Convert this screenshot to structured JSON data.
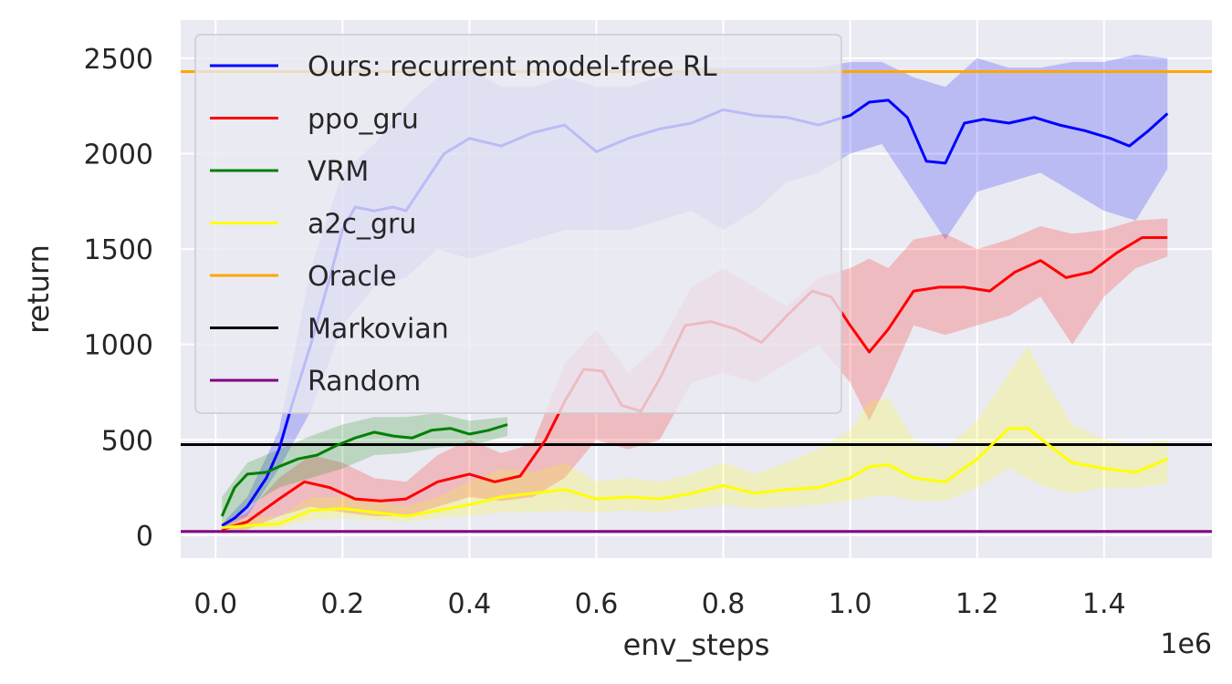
{
  "chart_data": {
    "type": "line",
    "xlabel": "env_steps",
    "ylabel": "return",
    "x_scale_label": "1e6",
    "xlim": [
      -0.055,
      1.57
    ],
    "ylim": [
      -120,
      2700
    ],
    "xticks": [
      0.0,
      0.2,
      0.4,
      0.6,
      0.8,
      1.0,
      1.2,
      1.4
    ],
    "xtick_labels": [
      "0.0",
      "0.2",
      "0.4",
      "0.6",
      "0.8",
      "1.0",
      "1.2",
      "1.4"
    ],
    "yticks": [
      0,
      500,
      1000,
      1500,
      2000,
      2500
    ],
    "ytick_labels": [
      "0",
      "500",
      "1000",
      "1500",
      "2000",
      "2500"
    ],
    "grid": true,
    "legend_position": "top-left",
    "background_color": "#eaeaf2",
    "series": [
      {
        "name": "Ours: recurrent model-free RL",
        "color": "#0000ff",
        "x": [
          0.01,
          0.03,
          0.05,
          0.08,
          0.1,
          0.12,
          0.15,
          0.18,
          0.2,
          0.22,
          0.25,
          0.28,
          0.3,
          0.33,
          0.36,
          0.4,
          0.45,
          0.5,
          0.55,
          0.6,
          0.65,
          0.7,
          0.75,
          0.8,
          0.85,
          0.9,
          0.95,
          1.0,
          1.03,
          1.06,
          1.09,
          1.12,
          1.15,
          1.18,
          1.21,
          1.25,
          1.29,
          1.33,
          1.37,
          1.41,
          1.44,
          1.47,
          1.5
        ],
        "y": [
          50,
          90,
          150,
          300,
          450,
          680,
          1000,
          1350,
          1600,
          1720,
          1700,
          1720,
          1700,
          1850,
          2000,
          2080,
          2040,
          2110,
          2150,
          2010,
          2080,
          2130,
          2160,
          2230,
          2200,
          2190,
          2150,
          2200,
          2270,
          2280,
          2190,
          1960,
          1950,
          2160,
          2180,
          2160,
          2190,
          2150,
          2120,
          2080,
          2040,
          2120,
          2210
        ]
      },
      {
        "name": "ppo_gru",
        "color": "#ff0000",
        "x": [
          0.01,
          0.05,
          0.1,
          0.14,
          0.18,
          0.22,
          0.26,
          0.3,
          0.35,
          0.4,
          0.44,
          0.48,
          0.52,
          0.55,
          0.58,
          0.61,
          0.64,
          0.67,
          0.7,
          0.74,
          0.78,
          0.82,
          0.86,
          0.9,
          0.94,
          0.97,
          1.0,
          1.03,
          1.06,
          1.1,
          1.14,
          1.18,
          1.22,
          1.26,
          1.3,
          1.34,
          1.38,
          1.42,
          1.46,
          1.5
        ],
        "y": [
          30,
          70,
          190,
          280,
          250,
          190,
          180,
          190,
          280,
          320,
          280,
          310,
          500,
          700,
          870,
          860,
          680,
          650,
          820,
          1100,
          1120,
          1080,
          1010,
          1150,
          1280,
          1250,
          1100,
          960,
          1080,
          1280,
          1300,
          1300,
          1280,
          1380,
          1440,
          1350,
          1380,
          1480,
          1560,
          1560
        ]
      },
      {
        "name": "VRM",
        "color": "#008000",
        "x": [
          0.01,
          0.03,
          0.05,
          0.08,
          0.1,
          0.13,
          0.16,
          0.19,
          0.22,
          0.25,
          0.28,
          0.31,
          0.34,
          0.37,
          0.4,
          0.43,
          0.46
        ],
        "y": [
          100,
          250,
          320,
          330,
          360,
          400,
          420,
          470,
          510,
          540,
          520,
          510,
          550,
          560,
          530,
          550,
          580
        ]
      },
      {
        "name": "a2c_gru",
        "color": "#ffff00",
        "x": [
          0.01,
          0.05,
          0.1,
          0.15,
          0.2,
          0.25,
          0.3,
          0.35,
          0.4,
          0.45,
          0.5,
          0.55,
          0.6,
          0.65,
          0.7,
          0.75,
          0.8,
          0.85,
          0.9,
          0.95,
          1.0,
          1.03,
          1.06,
          1.1,
          1.15,
          1.2,
          1.25,
          1.28,
          1.31,
          1.35,
          1.4,
          1.45,
          1.5
        ],
        "y": [
          40,
          50,
          60,
          130,
          140,
          120,
          100,
          130,
          160,
          200,
          220,
          240,
          190,
          200,
          190,
          220,
          260,
          220,
          240,
          250,
          300,
          360,
          370,
          300,
          280,
          400,
          560,
          560,
          480,
          380,
          350,
          330,
          400
        ]
      }
    ],
    "reference_lines": [
      {
        "name": "Oracle",
        "color": "#ffa500",
        "y": 2430
      },
      {
        "name": "Markovian",
        "color": "#000000",
        "y": 475
      },
      {
        "name": "Random",
        "color": "#800080",
        "y": 20
      }
    ],
    "bands": [
      {
        "series": "Ours: recurrent model-free RL",
        "x": [
          0.01,
          0.05,
          0.1,
          0.15,
          0.2,
          0.25,
          0.3,
          0.35,
          0.4,
          0.45,
          0.5,
          0.55,
          0.6,
          0.65,
          0.7,
          0.75,
          0.8,
          0.85,
          0.9,
          0.95,
          1.0,
          1.05,
          1.1,
          1.15,
          1.2,
          1.25,
          1.3,
          1.35,
          1.4,
          1.45,
          1.5
        ],
        "lower": [
          30,
          100,
          350,
          650,
          1100,
          1300,
          1350,
          1500,
          1450,
          1500,
          1550,
          1600,
          1600,
          1600,
          1650,
          1700,
          1600,
          1700,
          1850,
          1900,
          2000,
          2050,
          1800,
          1550,
          1800,
          1850,
          1900,
          1800,
          1700,
          1650,
          1920
        ],
        "upper": [
          60,
          200,
          550,
          1400,
          1900,
          2050,
          2250,
          2400,
          2450,
          2350,
          2350,
          2400,
          2350,
          2350,
          2400,
          2450,
          2450,
          2450,
          2450,
          2450,
          2480,
          2480,
          2400,
          2350,
          2500,
          2450,
          2450,
          2480,
          2480,
          2520,
          2500
        ]
      },
      {
        "series": "ppo_gru",
        "x": [
          0.01,
          0.05,
          0.1,
          0.15,
          0.2,
          0.25,
          0.3,
          0.35,
          0.4,
          0.45,
          0.5,
          0.55,
          0.6,
          0.65,
          0.7,
          0.75,
          0.8,
          0.85,
          0.9,
          0.95,
          1.0,
          1.03,
          1.06,
          1.1,
          1.15,
          1.2,
          1.25,
          1.3,
          1.35,
          1.4,
          1.45,
          1.5
        ],
        "lower": [
          10,
          30,
          100,
          150,
          120,
          100,
          100,
          150,
          200,
          180,
          200,
          300,
          500,
          450,
          500,
          800,
          850,
          800,
          900,
          1000,
          800,
          600,
          800,
          1100,
          1050,
          1100,
          1150,
          1250,
          1000,
          1250,
          1400,
          1460
        ],
        "upper": [
          50,
          120,
          300,
          420,
          380,
          300,
          280,
          420,
          500,
          430,
          480,
          900,
          1080,
          850,
          1000,
          1300,
          1400,
          1300,
          1200,
          1350,
          1400,
          1450,
          1400,
          1550,
          1580,
          1500,
          1550,
          1620,
          1580,
          1600,
          1650,
          1660
        ]
      },
      {
        "series": "VRM",
        "x": [
          0.01,
          0.05,
          0.1,
          0.15,
          0.2,
          0.25,
          0.3,
          0.35,
          0.4,
          0.46
        ],
        "lower": [
          50,
          150,
          250,
          300,
          350,
          420,
          430,
          460,
          470,
          520
        ],
        "upper": [
          200,
          380,
          450,
          520,
          580,
          620,
          620,
          640,
          600,
          620
        ]
      },
      {
        "series": "a2c_gru",
        "x": [
          0.01,
          0.05,
          0.1,
          0.15,
          0.2,
          0.25,
          0.3,
          0.35,
          0.4,
          0.45,
          0.5,
          0.55,
          0.6,
          0.65,
          0.7,
          0.75,
          0.8,
          0.85,
          0.9,
          0.95,
          1.0,
          1.03,
          1.06,
          1.1,
          1.15,
          1.2,
          1.25,
          1.28,
          1.31,
          1.35,
          1.4,
          1.45,
          1.5
        ],
        "lower": [
          20,
          30,
          40,
          80,
          90,
          80,
          70,
          90,
          100,
          120,
          120,
          130,
          120,
          130,
          120,
          140,
          160,
          140,
          150,
          160,
          180,
          200,
          210,
          180,
          180,
          250,
          350,
          300,
          250,
          220,
          250,
          250,
          270
        ],
        "upper": [
          80,
          90,
          100,
          200,
          200,
          180,
          150,
          200,
          280,
          350,
          330,
          380,
          280,
          300,
          280,
          320,
          380,
          320,
          380,
          450,
          550,
          700,
          720,
          500,
          450,
          600,
          850,
          990,
          800,
          580,
          500,
          480,
          500
        ]
      }
    ],
    "legend": [
      {
        "label": "Ours: recurrent model-free RL",
        "color": "#0000ff"
      },
      {
        "label": "ppo_gru",
        "color": "#ff0000"
      },
      {
        "label": "VRM",
        "color": "#008000"
      },
      {
        "label": "a2c_gru",
        "color": "#ffff00"
      },
      {
        "label": "Oracle",
        "color": "#ffa500"
      },
      {
        "label": "Markovian",
        "color": "#000000"
      },
      {
        "label": "Random",
        "color": "#800080"
      }
    ]
  }
}
